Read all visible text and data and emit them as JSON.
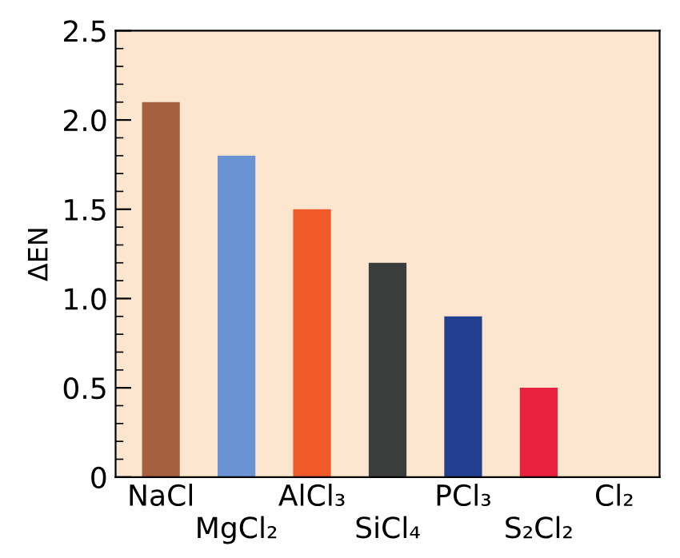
{
  "chart_data": {
    "type": "bar",
    "ylabel": "ΔEN",
    "categories": [
      "NaCl",
      "MgCl₂",
      "AlCl₃",
      "SiCl₄",
      "PCl₃",
      "S₂Cl₂",
      "Cl₂"
    ],
    "values": [
      2.1,
      1.8,
      1.5,
      1.2,
      0.9,
      0.5,
      0
    ],
    "colors": [
      "#a5603f",
      "#6a93d4",
      "#f05a28",
      "#3b3d3d",
      "#233f8f",
      "#e8213f",
      "#888888"
    ],
    "ylim": [
      0,
      2.5
    ],
    "yticks": [
      0,
      {
        "value": 0.5,
        "label": "0.5"
      },
      {
        "value": 1.0,
        "label": "1.0"
      },
      {
        "value": 1.5,
        "label": "1.5"
      },
      {
        "value": 2.0,
        "label": "2.0"
      },
      {
        "value": 2.5,
        "label": "2.5"
      }
    ],
    "grid": false,
    "legend": false
  }
}
